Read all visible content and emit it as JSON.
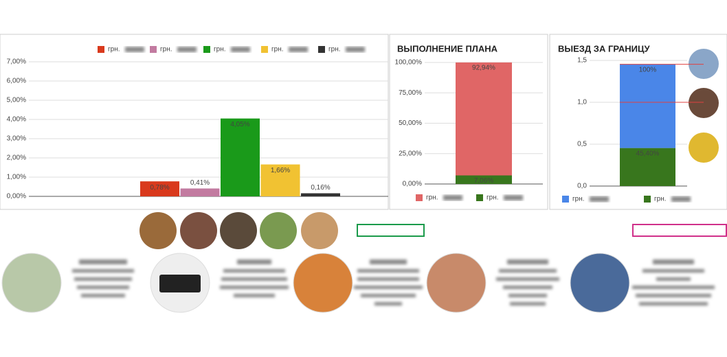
{
  "chart_data": [
    {
      "type": "bar",
      "categories": [
        null
      ],
      "ylim": [
        0,
        7
      ],
      "yticks": [
        {
          "value": 0,
          "label": "0,00%"
        },
        {
          "value": 1,
          "label": "1,00%"
        },
        {
          "value": 2,
          "label": "2,00%"
        },
        {
          "value": 3,
          "label": "3,00%"
        },
        {
          "value": 4,
          "label": "4,00%"
        },
        {
          "value": 5,
          "label": "5,00%"
        },
        {
          "value": 6,
          "label": "6,00%"
        },
        {
          "value": 7,
          "label": "7,00%"
        }
      ],
      "grid": true,
      "series": [
        {
          "name": "грн.",
          "color": "#d93a1d",
          "values": [
            0.78
          ],
          "value_labels": [
            "0,78%"
          ]
        },
        {
          "name": "грн.",
          "color": "#c27ba0",
          "values": [
            0.41
          ],
          "value_labels": [
            "0,41%"
          ]
        },
        {
          "name": "грн.",
          "color": "#1a9a1a",
          "values": [
            4.05
          ],
          "value_labels": [
            "4,05%"
          ]
        },
        {
          "name": "грн.",
          "color": "#f1c232",
          "values": [
            1.66
          ],
          "value_labels": [
            "1,66%"
          ]
        },
        {
          "name": "грн.",
          "color": "#333333",
          "values": [
            0.16
          ],
          "value_labels": [
            "0,16%"
          ]
        }
      ]
    },
    {
      "type": "stacked_bar",
      "title": "ВЫПОЛНЕНИЕ ПЛАНА",
      "categories": [
        null
      ],
      "ylim": [
        0,
        100
      ],
      "yticks": [
        {
          "value": 0,
          "label": "0,00%"
        },
        {
          "value": 25,
          "label": "25,00%"
        },
        {
          "value": 50,
          "label": "50,00%"
        },
        {
          "value": 75,
          "label": "75,00%"
        },
        {
          "value": 100,
          "label": "100,00%"
        }
      ],
      "grid": true,
      "series": [
        {
          "name": "грн.",
          "color": "#e06666",
          "values": [
            92.94
          ],
          "value_labels": [
            "92,94%"
          ]
        },
        {
          "name": "грн.",
          "color": "#38761d",
          "values": [
            7.06
          ],
          "value_labels": [
            "7,06%"
          ]
        }
      ]
    },
    {
      "type": "stacked_bar",
      "title": "ВЫЕЗД ЗА ГРАНИЦУ",
      "categories": [
        null
      ],
      "ylim": [
        0,
        1.5
      ],
      "yticks": [
        {
          "value": 0,
          "label": "0,0"
        },
        {
          "value": 0.5,
          "label": "0,5"
        },
        {
          "value": 1,
          "label": "1,0"
        },
        {
          "value": 1.5,
          "label": "1,5"
        }
      ],
      "grid": true,
      "series": [
        {
          "name": "грн.",
          "color": "#4a86e8",
          "values": [
            1
          ],
          "value_labels": [
            "100%"
          ]
        },
        {
          "name": "грн.",
          "color": "#38761d",
          "values": [
            0.454
          ],
          "value_labels": [
            "45,40%"
          ]
        }
      ]
    }
  ]
}
